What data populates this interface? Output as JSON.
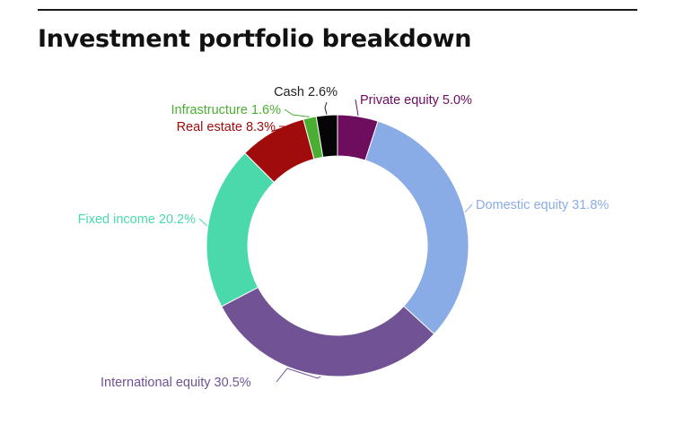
{
  "header": {
    "title": "Investment portfolio breakdown"
  },
  "chart_data": {
    "type": "pie",
    "variant": "donut",
    "title": "Investment portfolio breakdown",
    "grid": false,
    "legend": "none",
    "slices": [
      {
        "label": "Private equity",
        "value": 5.0,
        "display": "Private equity 5.0%",
        "color": "#6e0c5e"
      },
      {
        "label": "Domestic equity",
        "value": 31.8,
        "display": "Domestic equity 31.8%",
        "color": "#8aace6"
      },
      {
        "label": "International equity",
        "value": 30.5,
        "display": "International equity 30.5%",
        "color": "#705295"
      },
      {
        "label": "Fixed income",
        "value": 20.2,
        "display": "Fixed income 20.2%",
        "color": "#49d9ab"
      },
      {
        "label": "Real estate",
        "value": 8.3,
        "display": "Real estate 8.3%",
        "color": "#a00c0c"
      },
      {
        "label": "Infrastructure",
        "value": 1.6,
        "display": "Infrastructure 1.6%",
        "color": "#4aae32"
      },
      {
        "label": "Cash",
        "value": 2.6,
        "display": "Cash 2.6%",
        "color": "#050505"
      }
    ]
  }
}
